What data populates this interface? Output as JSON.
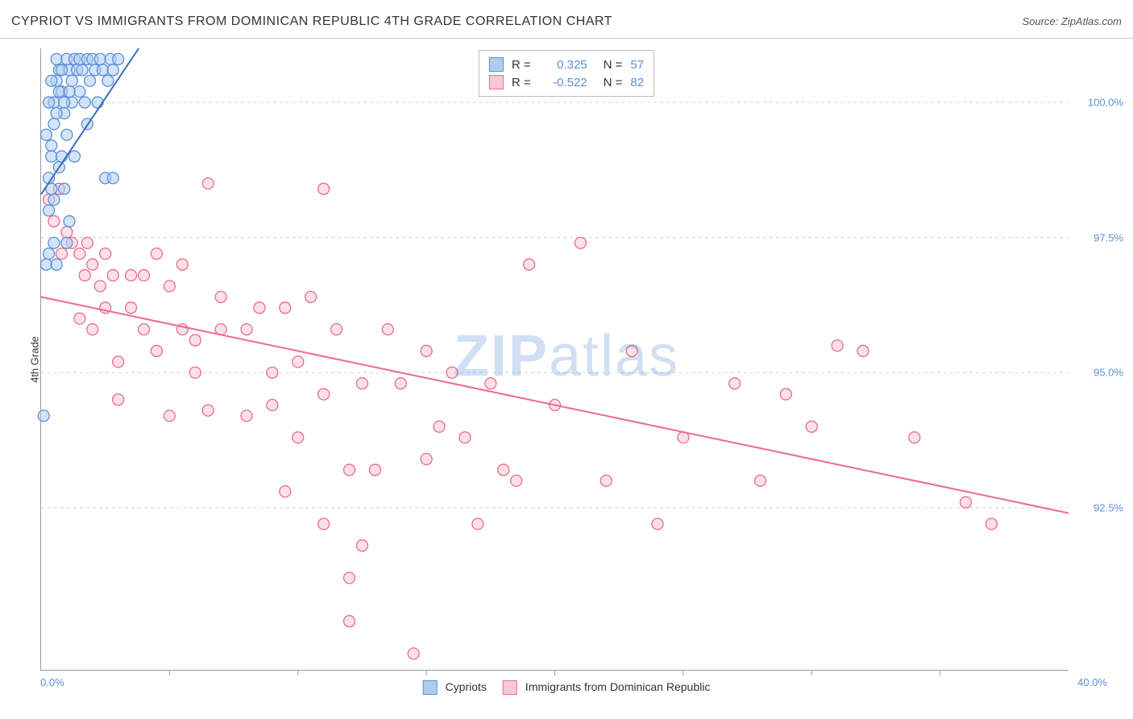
{
  "header": {
    "title": "CYPRIOT VS IMMIGRANTS FROM DOMINICAN REPUBLIC 4TH GRADE CORRELATION CHART",
    "source": "Source: ZipAtlas.com"
  },
  "axes": {
    "y_label": "4th Grade",
    "x_start": "0.0%",
    "x_end": "40.0%",
    "x_min": 0.0,
    "x_max": 40.0,
    "y_min": 89.5,
    "y_max": 101.0,
    "y_ticks": [
      {
        "v": 92.5,
        "label": "92.5%"
      },
      {
        "v": 95.0,
        "label": "95.0%"
      },
      {
        "v": 97.5,
        "label": "97.5%"
      },
      {
        "v": 100.0,
        "label": "100.0%"
      }
    ],
    "x_tick_positions": [
      5,
      10,
      15,
      20,
      25,
      30,
      35
    ],
    "grid_color": "#d5d5d5",
    "tick_color": "#999999"
  },
  "watermark": {
    "zip": "ZIP",
    "atlas": "atlas"
  },
  "legend": {
    "series1": "Cypriots",
    "series2": "Immigrants from Dominican Republic"
  },
  "stats": {
    "rows": [
      {
        "color_fill": "#aecdee",
        "color_stroke": "#5b8fd6",
        "r": "0.325",
        "n": "57"
      },
      {
        "color_fill": "#f7c9d4",
        "color_stroke": "#ec6b8b",
        "r": "-0.522",
        "n": "82"
      }
    ],
    "r_label": "R =",
    "n_label": "N ="
  },
  "series": {
    "cypriots": {
      "fill": "#aecdee",
      "stroke": "#5b8fd6",
      "fill_opacity": 0.55,
      "marker_r": 7,
      "line_color": "#3a6fb7",
      "line_width": 2,
      "trend": {
        "x1": 0.0,
        "y1": 98.3,
        "x2": 3.8,
        "y2": 101.0
      },
      "points": [
        [
          0.1,
          94.2
        ],
        [
          0.2,
          97.0
        ],
        [
          0.3,
          97.2
        ],
        [
          0.3,
          98.0
        ],
        [
          0.4,
          98.4
        ],
        [
          0.4,
          99.2
        ],
        [
          0.5,
          99.6
        ],
        [
          0.5,
          100.0
        ],
        [
          0.6,
          100.4
        ],
        [
          0.6,
          100.8
        ],
        [
          0.7,
          100.6
        ],
        [
          0.8,
          100.2
        ],
        [
          0.9,
          99.8
        ],
        [
          1.0,
          99.4
        ],
        [
          1.0,
          100.8
        ],
        [
          1.1,
          100.6
        ],
        [
          1.2,
          100.0
        ],
        [
          1.2,
          100.4
        ],
        [
          1.3,
          99.0
        ],
        [
          1.3,
          100.8
        ],
        [
          1.4,
          100.6
        ],
        [
          1.5,
          100.2
        ],
        [
          1.5,
          100.8
        ],
        [
          1.6,
          100.6
        ],
        [
          1.7,
          100.0
        ],
        [
          1.8,
          99.6
        ],
        [
          1.8,
          100.8
        ],
        [
          1.9,
          100.4
        ],
        [
          2.0,
          100.8
        ],
        [
          2.1,
          100.6
        ],
        [
          2.2,
          100.0
        ],
        [
          2.3,
          100.8
        ],
        [
          2.4,
          100.6
        ],
        [
          2.5,
          98.6
        ],
        [
          2.6,
          100.4
        ],
        [
          2.7,
          100.8
        ],
        [
          2.8,
          100.6
        ],
        [
          2.8,
          98.6
        ],
        [
          3.0,
          100.8
        ],
        [
          0.3,
          98.6
        ],
        [
          0.4,
          99.0
        ],
        [
          0.5,
          98.2
        ],
        [
          0.6,
          99.8
        ],
        [
          0.7,
          100.2
        ],
        [
          0.8,
          99.0
        ],
        [
          0.9,
          98.4
        ],
        [
          1.0,
          97.4
        ],
        [
          1.1,
          97.8
        ],
        [
          1.1,
          100.2
        ],
        [
          0.5,
          97.4
        ],
        [
          0.6,
          97.0
        ],
        [
          0.7,
          98.8
        ],
        [
          0.2,
          99.4
        ],
        [
          0.3,
          100.0
        ],
        [
          0.4,
          100.4
        ],
        [
          0.8,
          100.6
        ],
        [
          0.9,
          100.0
        ]
      ]
    },
    "dominican": {
      "fill": "#f7c9d4",
      "stroke": "#ec6b8b",
      "fill_opacity": 0.55,
      "marker_r": 7,
      "line_color": "#ec6b8b",
      "line_width": 2,
      "trend": {
        "x1": 0.0,
        "y1": 96.4,
        "x2": 40.0,
        "y2": 92.4
      },
      "points": [
        [
          0.3,
          98.2
        ],
        [
          0.5,
          97.8
        ],
        [
          0.7,
          98.4
        ],
        [
          0.8,
          97.2
        ],
        [
          1.0,
          97.6
        ],
        [
          1.2,
          97.4
        ],
        [
          1.5,
          96.0
        ],
        [
          1.5,
          97.2
        ],
        [
          1.7,
          96.8
        ],
        [
          1.8,
          97.4
        ],
        [
          2.0,
          95.8
        ],
        [
          2.0,
          97.0
        ],
        [
          2.3,
          96.6
        ],
        [
          2.5,
          96.2
        ],
        [
          2.5,
          97.2
        ],
        [
          2.8,
          96.8
        ],
        [
          3.0,
          95.2
        ],
        [
          3.0,
          94.5
        ],
        [
          3.5,
          96.2
        ],
        [
          3.5,
          96.8
        ],
        [
          4.0,
          95.8
        ],
        [
          4.0,
          96.8
        ],
        [
          4.5,
          95.4
        ],
        [
          4.5,
          97.2
        ],
        [
          5.0,
          94.2
        ],
        [
          5.0,
          96.6
        ],
        [
          5.5,
          95.8
        ],
        [
          5.5,
          97.0
        ],
        [
          6.0,
          95.0
        ],
        [
          6.0,
          95.6
        ],
        [
          6.5,
          94.3
        ],
        [
          6.5,
          98.5
        ],
        [
          7.0,
          95.8
        ],
        [
          7.0,
          96.4
        ],
        [
          8.0,
          94.2
        ],
        [
          8.0,
          95.8
        ],
        [
          8.5,
          96.2
        ],
        [
          9.0,
          95.0
        ],
        [
          9.0,
          94.4
        ],
        [
          9.5,
          92.8
        ],
        [
          9.5,
          96.2
        ],
        [
          10.0,
          93.8
        ],
        [
          10.0,
          95.2
        ],
        [
          10.5,
          96.4
        ],
        [
          11.0,
          92.2
        ],
        [
          11.0,
          94.6
        ],
        [
          11.0,
          98.4
        ],
        [
          11.5,
          95.8
        ],
        [
          12.0,
          91.2
        ],
        [
          12.0,
          90.4
        ],
        [
          12.0,
          93.2
        ],
        [
          12.5,
          91.8
        ],
        [
          12.5,
          94.8
        ],
        [
          13.0,
          93.2
        ],
        [
          13.5,
          95.8
        ],
        [
          14.0,
          94.8
        ],
        [
          14.5,
          89.8
        ],
        [
          15.0,
          95.4
        ],
        [
          15.0,
          93.4
        ],
        [
          15.5,
          94.0
        ],
        [
          16.0,
          95.0
        ],
        [
          16.5,
          93.8
        ],
        [
          17.0,
          92.2
        ],
        [
          17.5,
          94.8
        ],
        [
          18.0,
          93.2
        ],
        [
          18.5,
          93.0
        ],
        [
          19.0,
          97.0
        ],
        [
          20.0,
          94.4
        ],
        [
          21.0,
          97.4
        ],
        [
          22.0,
          93.0
        ],
        [
          23.0,
          95.4
        ],
        [
          24.0,
          92.2
        ],
        [
          25.0,
          93.8
        ],
        [
          27.0,
          94.8
        ],
        [
          28.0,
          93.0
        ],
        [
          29.0,
          94.6
        ],
        [
          30.0,
          94.0
        ],
        [
          31.0,
          95.5
        ],
        [
          32.0,
          95.4
        ],
        [
          34.0,
          93.8
        ],
        [
          36.0,
          92.6
        ],
        [
          37.0,
          92.2
        ]
      ]
    }
  },
  "styling": {
    "background": "#ffffff",
    "title_fontsize": 16,
    "label_fontsize": 13,
    "tick_label_color": "#5b8fd6"
  }
}
